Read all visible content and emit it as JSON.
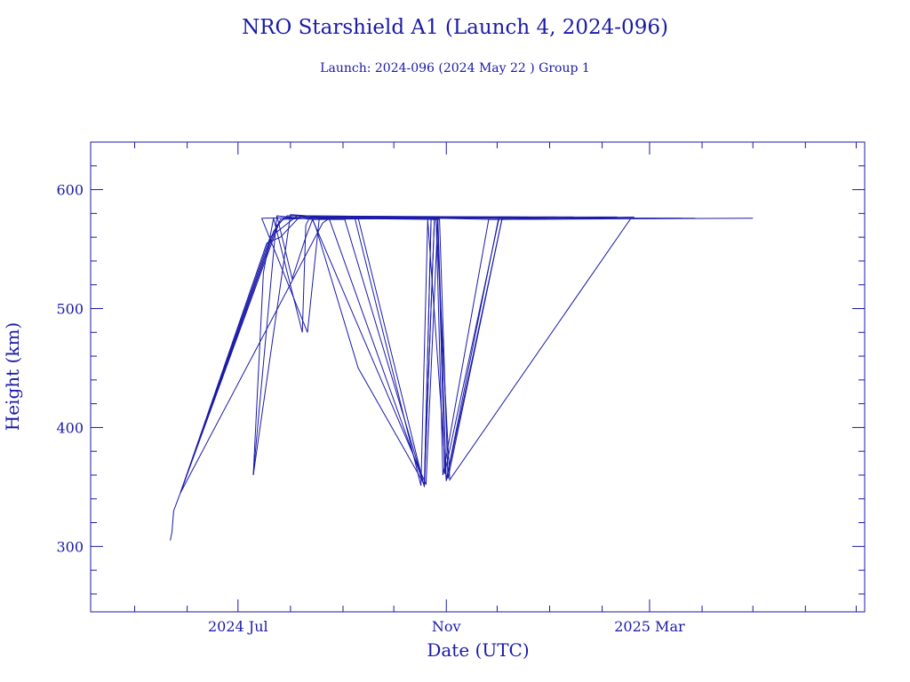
{
  "chart_data": {
    "type": "line",
    "title": "NRO Starshield A1 (Launch 4, 2024-096)",
    "subtitle": "Launch: 2024-096  (2024 May 22 )  Group 1",
    "xlabel": "Date (UTC)",
    "ylabel": "Height (km)",
    "x_axis_type": "date",
    "xlim": [
      "2024-04-05",
      "2025-07-06"
    ],
    "ylim": [
      245,
      640
    ],
    "x_ticks": [
      {
        "date": "2024-07-01",
        "label": "2024 Jul"
      },
      {
        "date": "2024-11-01",
        "label": "Nov"
      },
      {
        "date": "2025-03-01",
        "label": "2025 Mar"
      }
    ],
    "y_ticks": [
      {
        "value": 300,
        "label": "300"
      },
      {
        "value": 400,
        "label": "400"
      },
      {
        "value": 500,
        "label": "500"
      },
      {
        "value": 600,
        "label": "600"
      }
    ],
    "grid": false,
    "color": "#1a1aa8",
    "series": [
      {
        "points": [
          [
            "2024-05-22",
            305
          ],
          [
            "2024-05-23",
            312
          ],
          [
            "2024-05-24",
            330
          ],
          [
            "2024-05-28",
            345
          ],
          [
            "2024-07-26",
            575
          ],
          [
            "2024-08-30",
            577
          ],
          [
            "2024-12-20",
            577
          ]
        ]
      },
      {
        "points": [
          [
            "2024-05-28",
            345
          ],
          [
            "2024-07-24",
            570
          ],
          [
            "2024-07-30",
            578
          ],
          [
            "2024-12-10",
            577
          ]
        ]
      },
      {
        "points": [
          [
            "2024-05-28",
            345
          ],
          [
            "2024-07-22",
            565
          ],
          [
            "2024-07-28",
            576
          ],
          [
            "2024-09-10",
            576
          ],
          [
            "2024-10-19",
            350
          ],
          [
            "2024-10-25",
            577
          ],
          [
            "2025-01-15",
            577
          ]
        ]
      },
      {
        "points": [
          [
            "2024-05-28",
            345
          ],
          [
            "2024-07-20",
            560
          ],
          [
            "2024-08-05",
            578
          ],
          [
            "2024-08-24",
            575
          ],
          [
            "2024-10-19",
            351
          ],
          [
            "2024-10-23",
            576
          ],
          [
            "2024-10-28",
            575
          ],
          [
            "2024-11-02",
            357
          ],
          [
            "2024-12-04",
            576
          ],
          [
            "2025-01-20",
            576
          ]
        ]
      },
      {
        "points": [
          [
            "2024-05-28",
            345
          ],
          [
            "2024-07-18",
            555
          ],
          [
            "2024-07-26",
            560
          ],
          [
            "2024-08-07",
            578
          ],
          [
            "2024-12-30",
            576
          ]
        ]
      },
      {
        "points": [
          [
            "2024-05-28",
            345
          ],
          [
            "2024-08-20",
            572
          ],
          [
            "2024-08-24",
            576
          ],
          [
            "2024-12-05",
            576
          ]
        ]
      },
      {
        "points": [
          [
            "2024-07-10",
            360
          ],
          [
            "2024-07-24",
            578
          ],
          [
            "2024-08-14",
            575
          ],
          [
            "2024-10-20",
            352
          ],
          [
            "2024-10-27",
            576
          ],
          [
            "2024-11-01",
            356
          ],
          [
            "2024-12-02",
            577
          ],
          [
            "2025-02-10",
            577
          ]
        ]
      },
      {
        "points": [
          [
            "2024-07-10",
            360
          ],
          [
            "2024-08-01",
            579
          ],
          [
            "2024-08-20",
            577
          ],
          [
            "2024-12-15",
            577
          ]
        ]
      },
      {
        "points": [
          [
            "2024-07-10",
            360
          ],
          [
            "2024-07-16",
            530
          ],
          [
            "2024-07-22",
            576
          ],
          [
            "2024-08-08",
            480
          ],
          [
            "2024-08-10",
            570
          ],
          [
            "2024-08-12",
            576
          ],
          [
            "2025-01-05",
            577
          ]
        ]
      },
      {
        "points": [
          [
            "2024-07-15",
            576
          ],
          [
            "2024-08-11",
            480
          ],
          [
            "2024-08-18",
            576
          ],
          [
            "2024-10-26",
            575
          ],
          [
            "2024-10-30",
            360
          ],
          [
            "2024-11-26",
            575
          ],
          [
            "2025-05-01",
            576
          ]
        ]
      },
      {
        "points": [
          [
            "2024-07-15",
            576
          ],
          [
            "2024-08-16",
            577
          ],
          [
            "2024-09-08",
            576
          ],
          [
            "2024-10-17",
            351
          ],
          [
            "2024-10-21",
            575
          ],
          [
            "2024-11-01",
            355
          ],
          [
            "2024-12-04",
            576
          ],
          [
            "2025-03-28",
            576
          ]
        ]
      },
      {
        "points": [
          [
            "2024-07-24",
            578
          ],
          [
            "2024-08-02",
            525
          ],
          [
            "2024-08-10",
            560
          ],
          [
            "2024-08-14",
            575
          ],
          [
            "2024-10-26",
            576
          ],
          [
            "2024-11-03",
            356
          ],
          [
            "2025-02-18",
            576
          ],
          [
            "2025-03-20",
            576
          ]
        ]
      },
      {
        "points": [
          [
            "2024-08-14",
            575
          ],
          [
            "2024-08-16",
            568
          ],
          [
            "2024-09-10",
            450
          ],
          [
            "2024-10-19",
            352
          ],
          [
            "2024-10-23",
            575
          ],
          [
            "2024-10-27",
            575
          ],
          [
            "2024-10-31",
            361
          ],
          [
            "2024-12-02",
            575
          ],
          [
            "2025-03-05",
            576
          ]
        ]
      },
      {
        "points": [
          [
            "2024-08-14",
            575
          ],
          [
            "2024-09-02",
            575
          ],
          [
            "2024-10-19",
            351
          ],
          [
            "2024-10-25",
            576
          ],
          [
            "2024-11-30",
            575
          ],
          [
            "2025-02-20",
            577
          ]
        ]
      }
    ]
  }
}
